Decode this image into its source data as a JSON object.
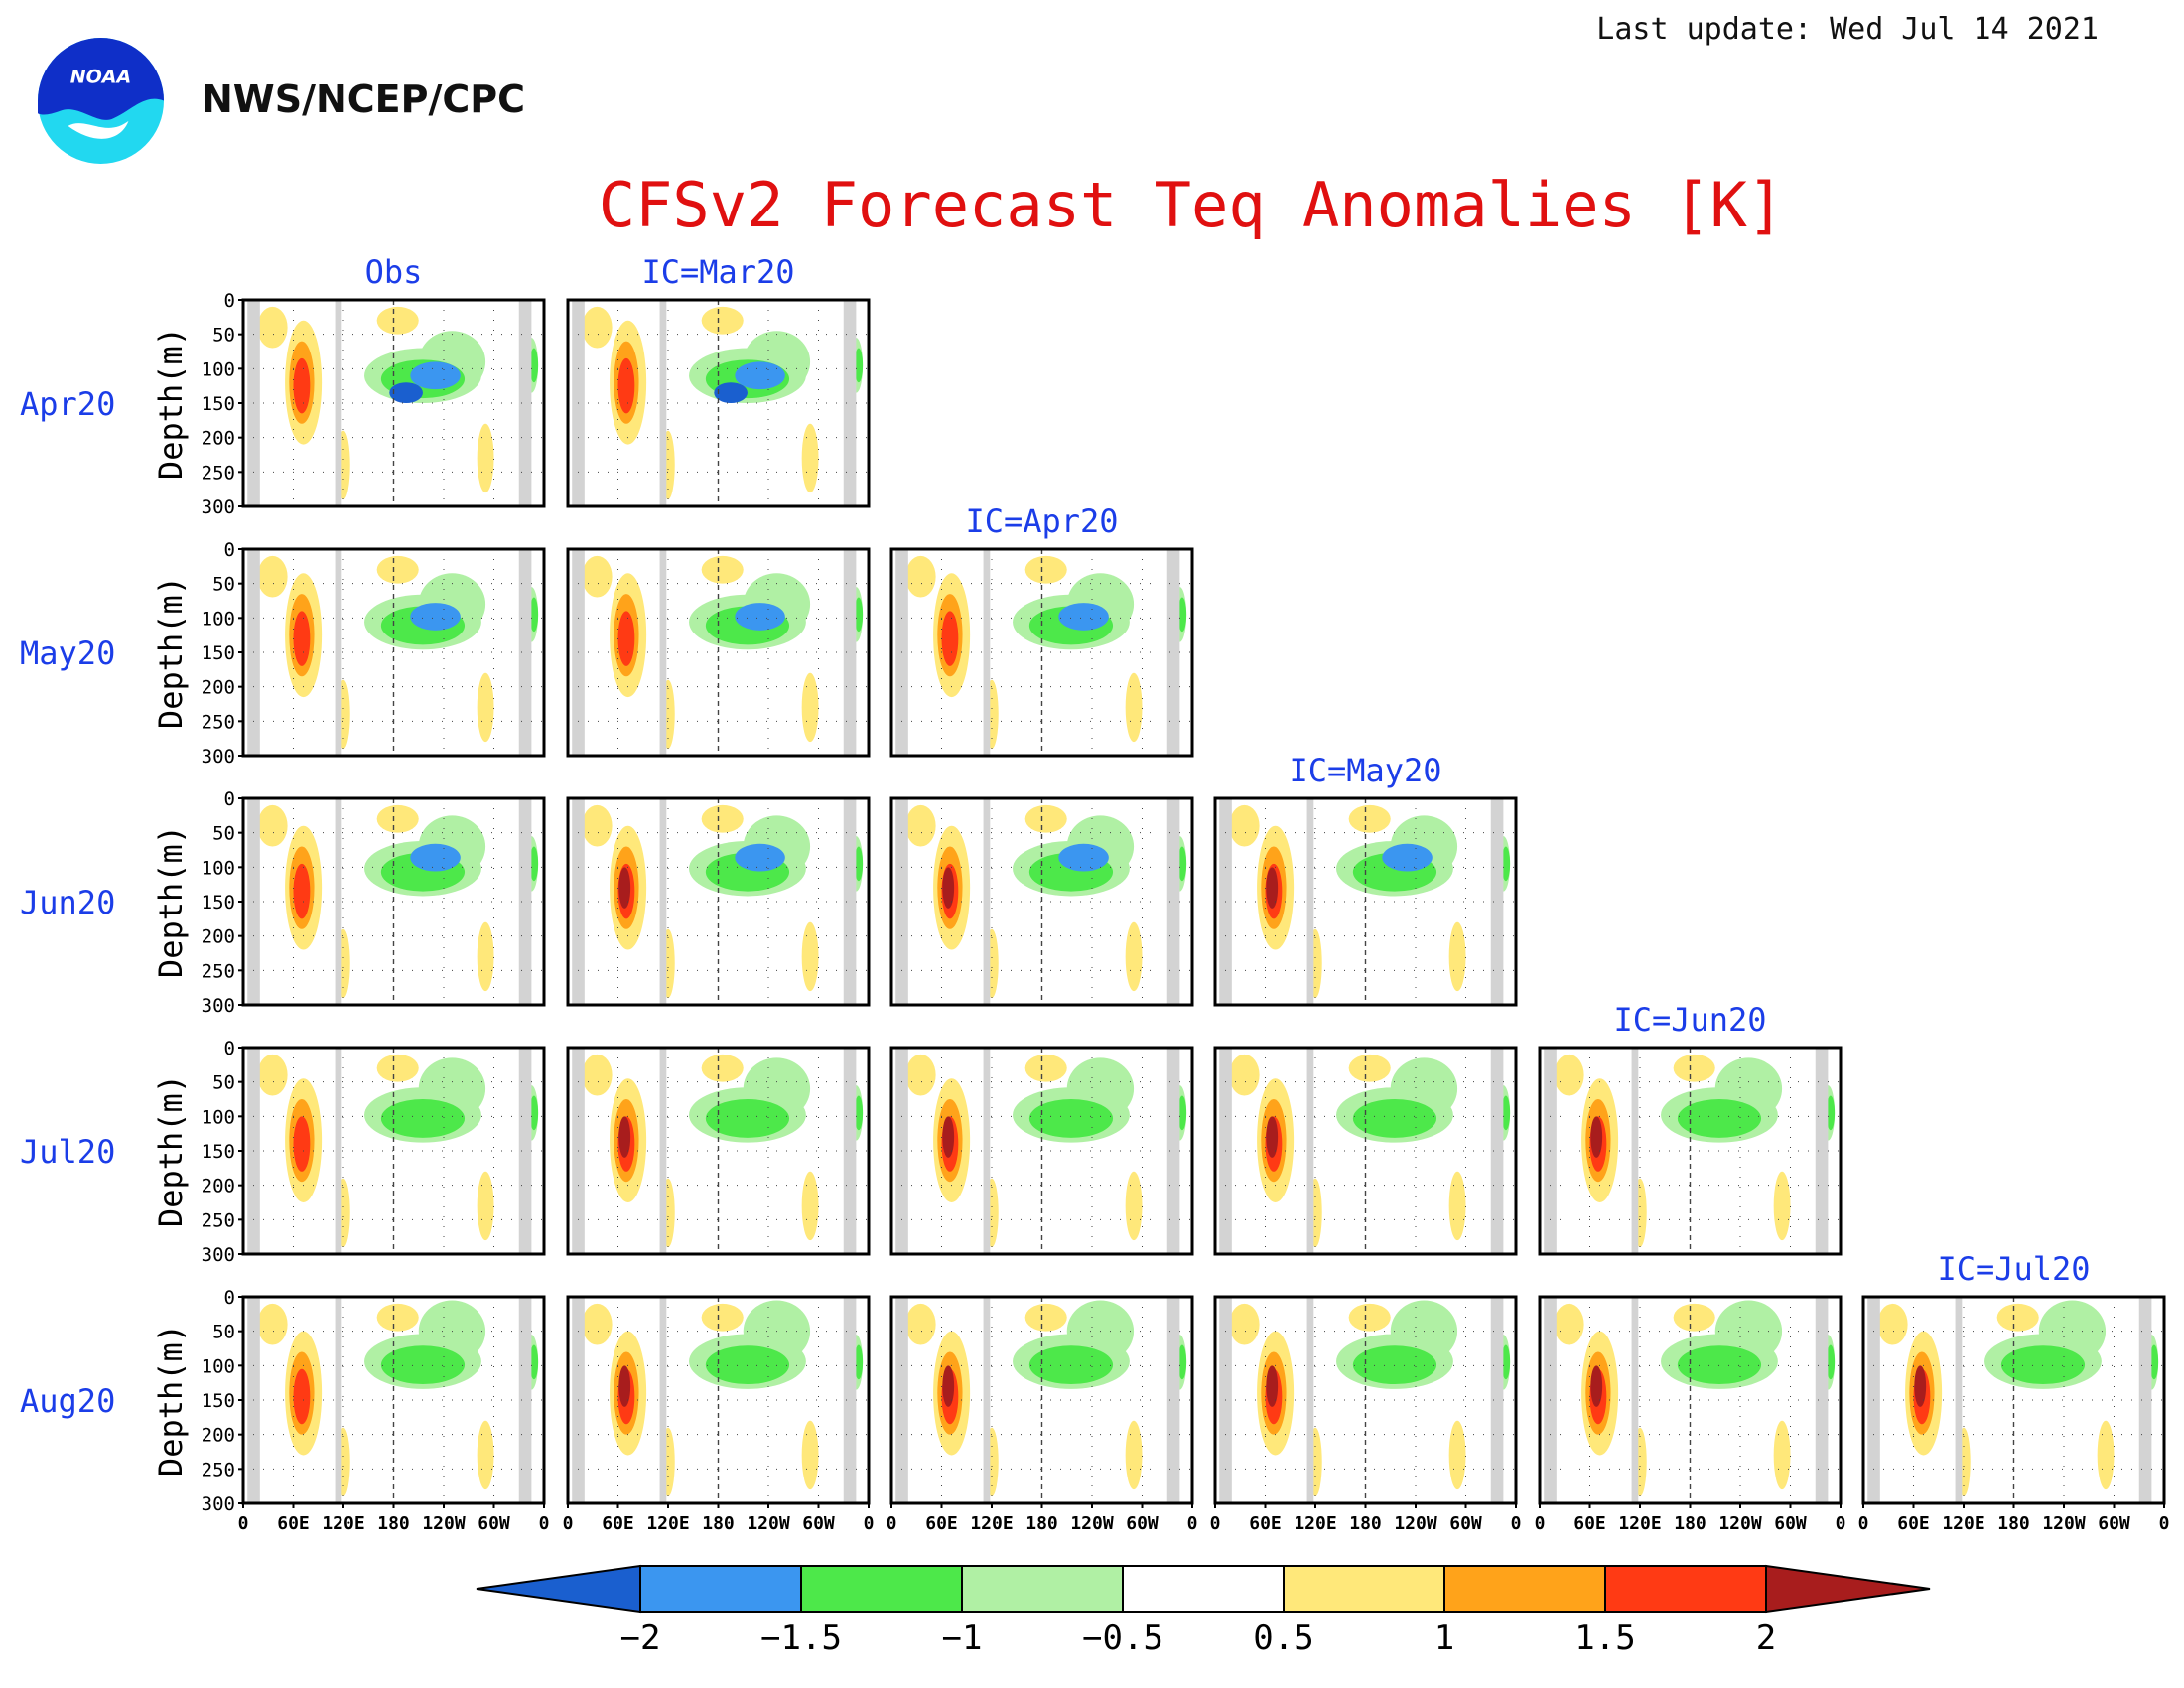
{
  "header": {
    "agency": "NWS/NCEP/CPC",
    "last_update": "Last update: Wed Jul 14 2021",
    "logo_text": "NOAA"
  },
  "chart_data": {
    "type": "heatmap",
    "title": "CFSv2 Forecast Teq Anomalies [K]",
    "ylabel": "Depth(m)",
    "y_ticks": [
      "0",
      "50",
      "100",
      "150",
      "200",
      "250",
      "300"
    ],
    "ylim": [
      300,
      0
    ],
    "x_ticks": [
      "0",
      "60E",
      "120E",
      "180",
      "120W",
      "60W",
      "0"
    ],
    "rows": [
      "Apr20",
      "May20",
      "Jun20",
      "Jul20",
      "Aug20"
    ],
    "columns": [
      "Obs",
      "IC=Mar20",
      "IC=Apr20",
      "IC=May20",
      "IC=Jun20",
      "IC=Jul20"
    ],
    "colorbar": {
      "tick_labels": [
        "−2",
        "−1.5",
        "−1",
        "−0.5",
        "0.5",
        "1",
        "1.5",
        "2"
      ],
      "colors": [
        "#1a5fcf",
        "#3b96f0",
        "#4de84a",
        "#b0f0a4",
        "#ffffff",
        "#ffe87a",
        "#ffa31a",
        "#ff3a14",
        "#a81d1d"
      ]
    },
    "land_mask_color": "#d3d3d3"
  }
}
